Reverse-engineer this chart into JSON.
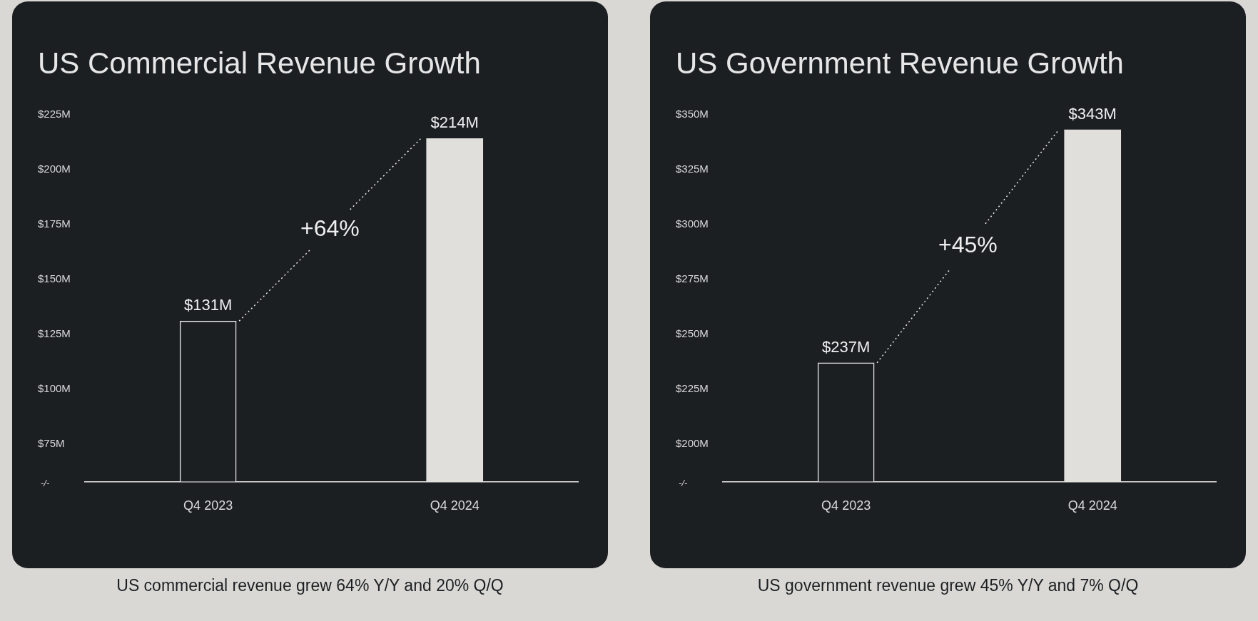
{
  "chart_data": [
    {
      "type": "bar",
      "title": "US Commercial Revenue Growth",
      "categories": [
        "Q4 2023",
        "Q4 2024"
      ],
      "values": [
        131,
        214
      ],
      "value_labels": [
        "$131M",
        "$214M"
      ],
      "colors": [
        "#1c1f22",
        "#e0dfdc"
      ],
      "ylim": [
        58,
        225
      ],
      "yticks": [
        {
          "value": 75,
          "label": "$75M"
        },
        {
          "value": 100,
          "label": "$100M"
        },
        {
          "value": 125,
          "label": "$125M"
        },
        {
          "value": 150,
          "label": "$150M"
        },
        {
          "value": 175,
          "label": "$175M"
        },
        {
          "value": 200,
          "label": "$200M"
        },
        {
          "value": 225,
          "label": "$225M"
        }
      ],
      "grid": false,
      "legend": false,
      "annotations": [
        "+64%",
        "US commercial revenue grew 64% Y/Y and 20% Q/Q",
        "-/-"
      ]
    },
    {
      "type": "bar",
      "title": "US Government Revenue Growth",
      "categories": [
        "Q4 2023",
        "Q4 2024"
      ],
      "values": [
        237,
        343
      ],
      "value_labels": [
        "$237M",
        "$343M"
      ],
      "colors": [
        "#1c1f22",
        "#e0dfdc"
      ],
      "ylim": [
        183,
        350
      ],
      "yticks": [
        {
          "value": 200,
          "label": "$200M"
        },
        {
          "value": 225,
          "label": "$225M"
        },
        {
          "value": 250,
          "label": "$250M"
        },
        {
          "value": 275,
          "label": "$275M"
        },
        {
          "value": 300,
          "label": "$300M"
        },
        {
          "value": 325,
          "label": "$325M"
        },
        {
          "value": 350,
          "label": "$350M"
        }
      ],
      "grid": false,
      "legend": false,
      "annotations": [
        "+45%",
        "US government revenue grew 45% Y/Y and 7% Q/Q",
        "-/-"
      ]
    }
  ]
}
